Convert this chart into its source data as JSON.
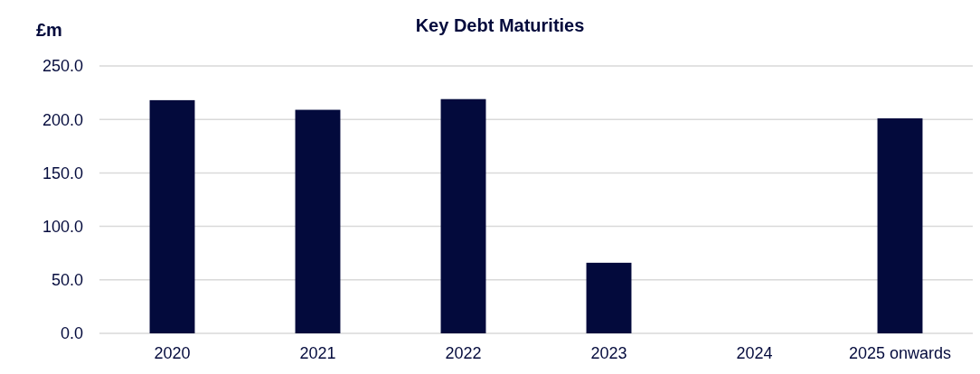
{
  "chart_data": {
    "type": "bar",
    "title": "Key Debt Maturities",
    "ylabel": "£m",
    "categories": [
      "2020",
      "2021",
      "2022",
      "2023",
      "2024",
      "2025 onwards"
    ],
    "values": [
      218,
      209,
      219,
      66,
      0,
      201
    ],
    "color": "#030a3c",
    "ylim": [
      0,
      250
    ],
    "yticks": [
      {
        "value": 0,
        "label": "0.0"
      },
      {
        "value": 50,
        "label": "50.0"
      },
      {
        "value": 100,
        "label": "100.0"
      },
      {
        "value": 150,
        "label": "150.0"
      },
      {
        "value": 200,
        "label": "200.0"
      },
      {
        "value": 250,
        "label": "250.0"
      }
    ],
    "grid": "y"
  }
}
